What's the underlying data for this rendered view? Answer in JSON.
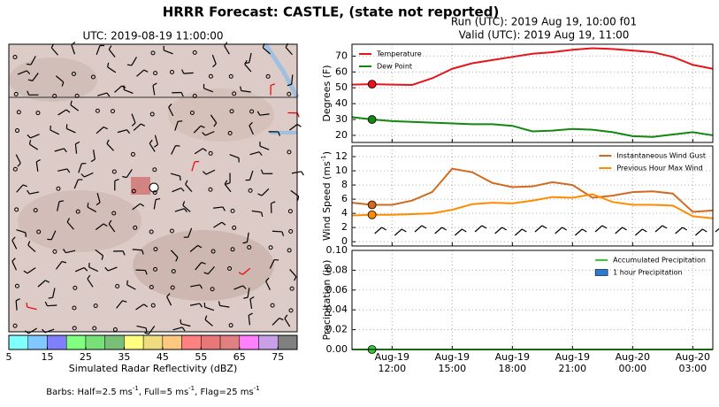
{
  "title": "HRRR Forecast: CASTLE, (state not reported)",
  "run": "Run (UTC): 2019 Aug 19, 10:00 f01",
  "valid": "Valid (UTC): 2019 Aug 19, 11:00",
  "footer": [
    "Barbs: Half=2.5 ms",
    "-1",
    ", Full=5 ms",
    "-1",
    ", Flag=25 ms",
    "-1"
  ],
  "time_axis": {
    "x": [
      "2019-08-19T10:00",
      "2019-08-19T11:00",
      "2019-08-19T12:00",
      "2019-08-19T13:00",
      "2019-08-19T14:00",
      "2019-08-19T15:00",
      "2019-08-19T16:00",
      "2019-08-19T17:00",
      "2019-08-19T18:00",
      "2019-08-19T19:00",
      "2019-08-19T20:00",
      "2019-08-19T21:00",
      "2019-08-19T22:00",
      "2019-08-19T23:00",
      "2019-08-20T00:00",
      "2019-08-20T01:00",
      "2019-08-20T02:00",
      "2019-08-20T03:00",
      "2019-08-20T04:00"
    ],
    "xlim": [
      "2019-08-19T10:00",
      "2019-08-20T04:00"
    ],
    "xticks": [
      {
        "value": "2019-08-19T12:00",
        "label": [
          "Aug-19",
          "12:00"
        ]
      },
      {
        "value": "2019-08-19T15:00",
        "label": [
          "Aug-19",
          "15:00"
        ]
      },
      {
        "value": "2019-08-19T18:00",
        "label": [
          "Aug-19",
          "18:00"
        ]
      },
      {
        "value": "2019-08-19T21:00",
        "label": [
          "Aug-19",
          "21:00"
        ]
      },
      {
        "value": "2019-08-20T00:00",
        "label": [
          "Aug-20",
          "00:00"
        ]
      },
      {
        "value": "2019-08-20T03:00",
        "label": [
          "Aug-20",
          "03:00"
        ]
      }
    ],
    "marker_x": "2019-08-19T11:00",
    "grid": true
  },
  "chart_data": [
    {
      "type": "map",
      "title": "UTC: 2019-08-19 11:00:00",
      "colorbar": {
        "label": "Simulated Radar Reflectivity (dBZ)",
        "clim": [
          5,
          80
        ],
        "colors": [
          "#80ffff",
          "#80c8ff",
          "#8080ff",
          "#80ff80",
          "#78e078",
          "#78c078",
          "#ffff80",
          "#f0dc80",
          "#ffc880",
          "#ff8080",
          "#e87878",
          "#e08080",
          "#ff80ff",
          "#c8a0e8",
          "#808080"
        ],
        "ticks": [
          5,
          15,
          25,
          35,
          45,
          55,
          65,
          75
        ]
      }
    },
    {
      "type": "line",
      "ylabel": [
        "Degrees (F)"
      ],
      "ylim": [
        15.5,
        77.5
      ],
      "yticks": [
        20,
        30,
        40,
        50,
        60,
        70
      ],
      "legend": "upper left",
      "series": [
        {
          "name": "Temperature",
          "color": "#e8141c",
          "values": [
            52,
            52.3,
            52,
            51.8,
            56,
            62,
            65.5,
            67.5,
            69.5,
            71.5,
            72.5,
            74,
            75,
            74.5,
            73.5,
            72.5,
            69.5,
            64.5,
            62
          ]
        },
        {
          "name": "Dew Point",
          "color": "#118811",
          "values": [
            31.5,
            30,
            29,
            28.5,
            28,
            27.5,
            27,
            27,
            26,
            22.5,
            23,
            24,
            23.5,
            22,
            19.5,
            19,
            20.5,
            22,
            20
          ]
        }
      ]
    },
    {
      "type": "line",
      "ylabel": [
        "Wind Speed (ms",
        "-1",
        ")"
      ],
      "ylim": [
        -0.6,
        13.5
      ],
      "yticks": [
        0,
        2,
        4,
        6,
        8,
        10,
        12
      ],
      "legend": "upper right",
      "series": [
        {
          "name": "Instantaneous Wind Gust",
          "color": "#d2691e",
          "values": [
            5.5,
            5.2,
            5.2,
            5.8,
            7,
            10.3,
            9.8,
            8.3,
            7.7,
            7.8,
            8.4,
            8,
            6.2,
            6.5,
            7,
            7.1,
            6.8,
            4.2,
            4.4
          ]
        },
        {
          "name": "Previous Hour Max Wind",
          "color": "#ff8c00",
          "values": [
            3.7,
            3.8,
            3.8,
            3.9,
            4,
            4.5,
            5.3,
            5.5,
            5.4,
            5.8,
            6.3,
            6.2,
            6.7,
            5.6,
            5.2,
            5.2,
            5.1,
            3.6,
            3.3
          ]
        }
      ]
    },
    {
      "type": "line",
      "ylabel": [
        "Precipitation (in)"
      ],
      "ylim": [
        0,
        0.1
      ],
      "yticks": [
        {
          "value": 0,
          "label": "0.00"
        },
        {
          "value": 0.02,
          "label": "0.02"
        },
        {
          "value": 0.04,
          "label": "0.04"
        },
        {
          "value": 0.06,
          "label": "0.06"
        },
        {
          "value": 0.08,
          "label": "0.08"
        },
        {
          "value": 0.1,
          "label": "0.10"
        }
      ],
      "legend": "upper right",
      "series": [
        {
          "name": "Accumulated Precipitation",
          "color": "#32cd32",
          "values": [
            0,
            0,
            0,
            0,
            0,
            0,
            0,
            0,
            0,
            0,
            0,
            0,
            0,
            0,
            0,
            0,
            0,
            0,
            0
          ]
        },
        {
          "name": "1 hour Precipitation",
          "color": "#2b7bd6",
          "kind": "bar",
          "values": [
            0,
            0,
            0,
            0,
            0,
            0,
            0,
            0,
            0,
            0,
            0,
            0,
            0,
            0,
            0,
            0,
            0,
            0,
            0
          ]
        }
      ]
    }
  ]
}
